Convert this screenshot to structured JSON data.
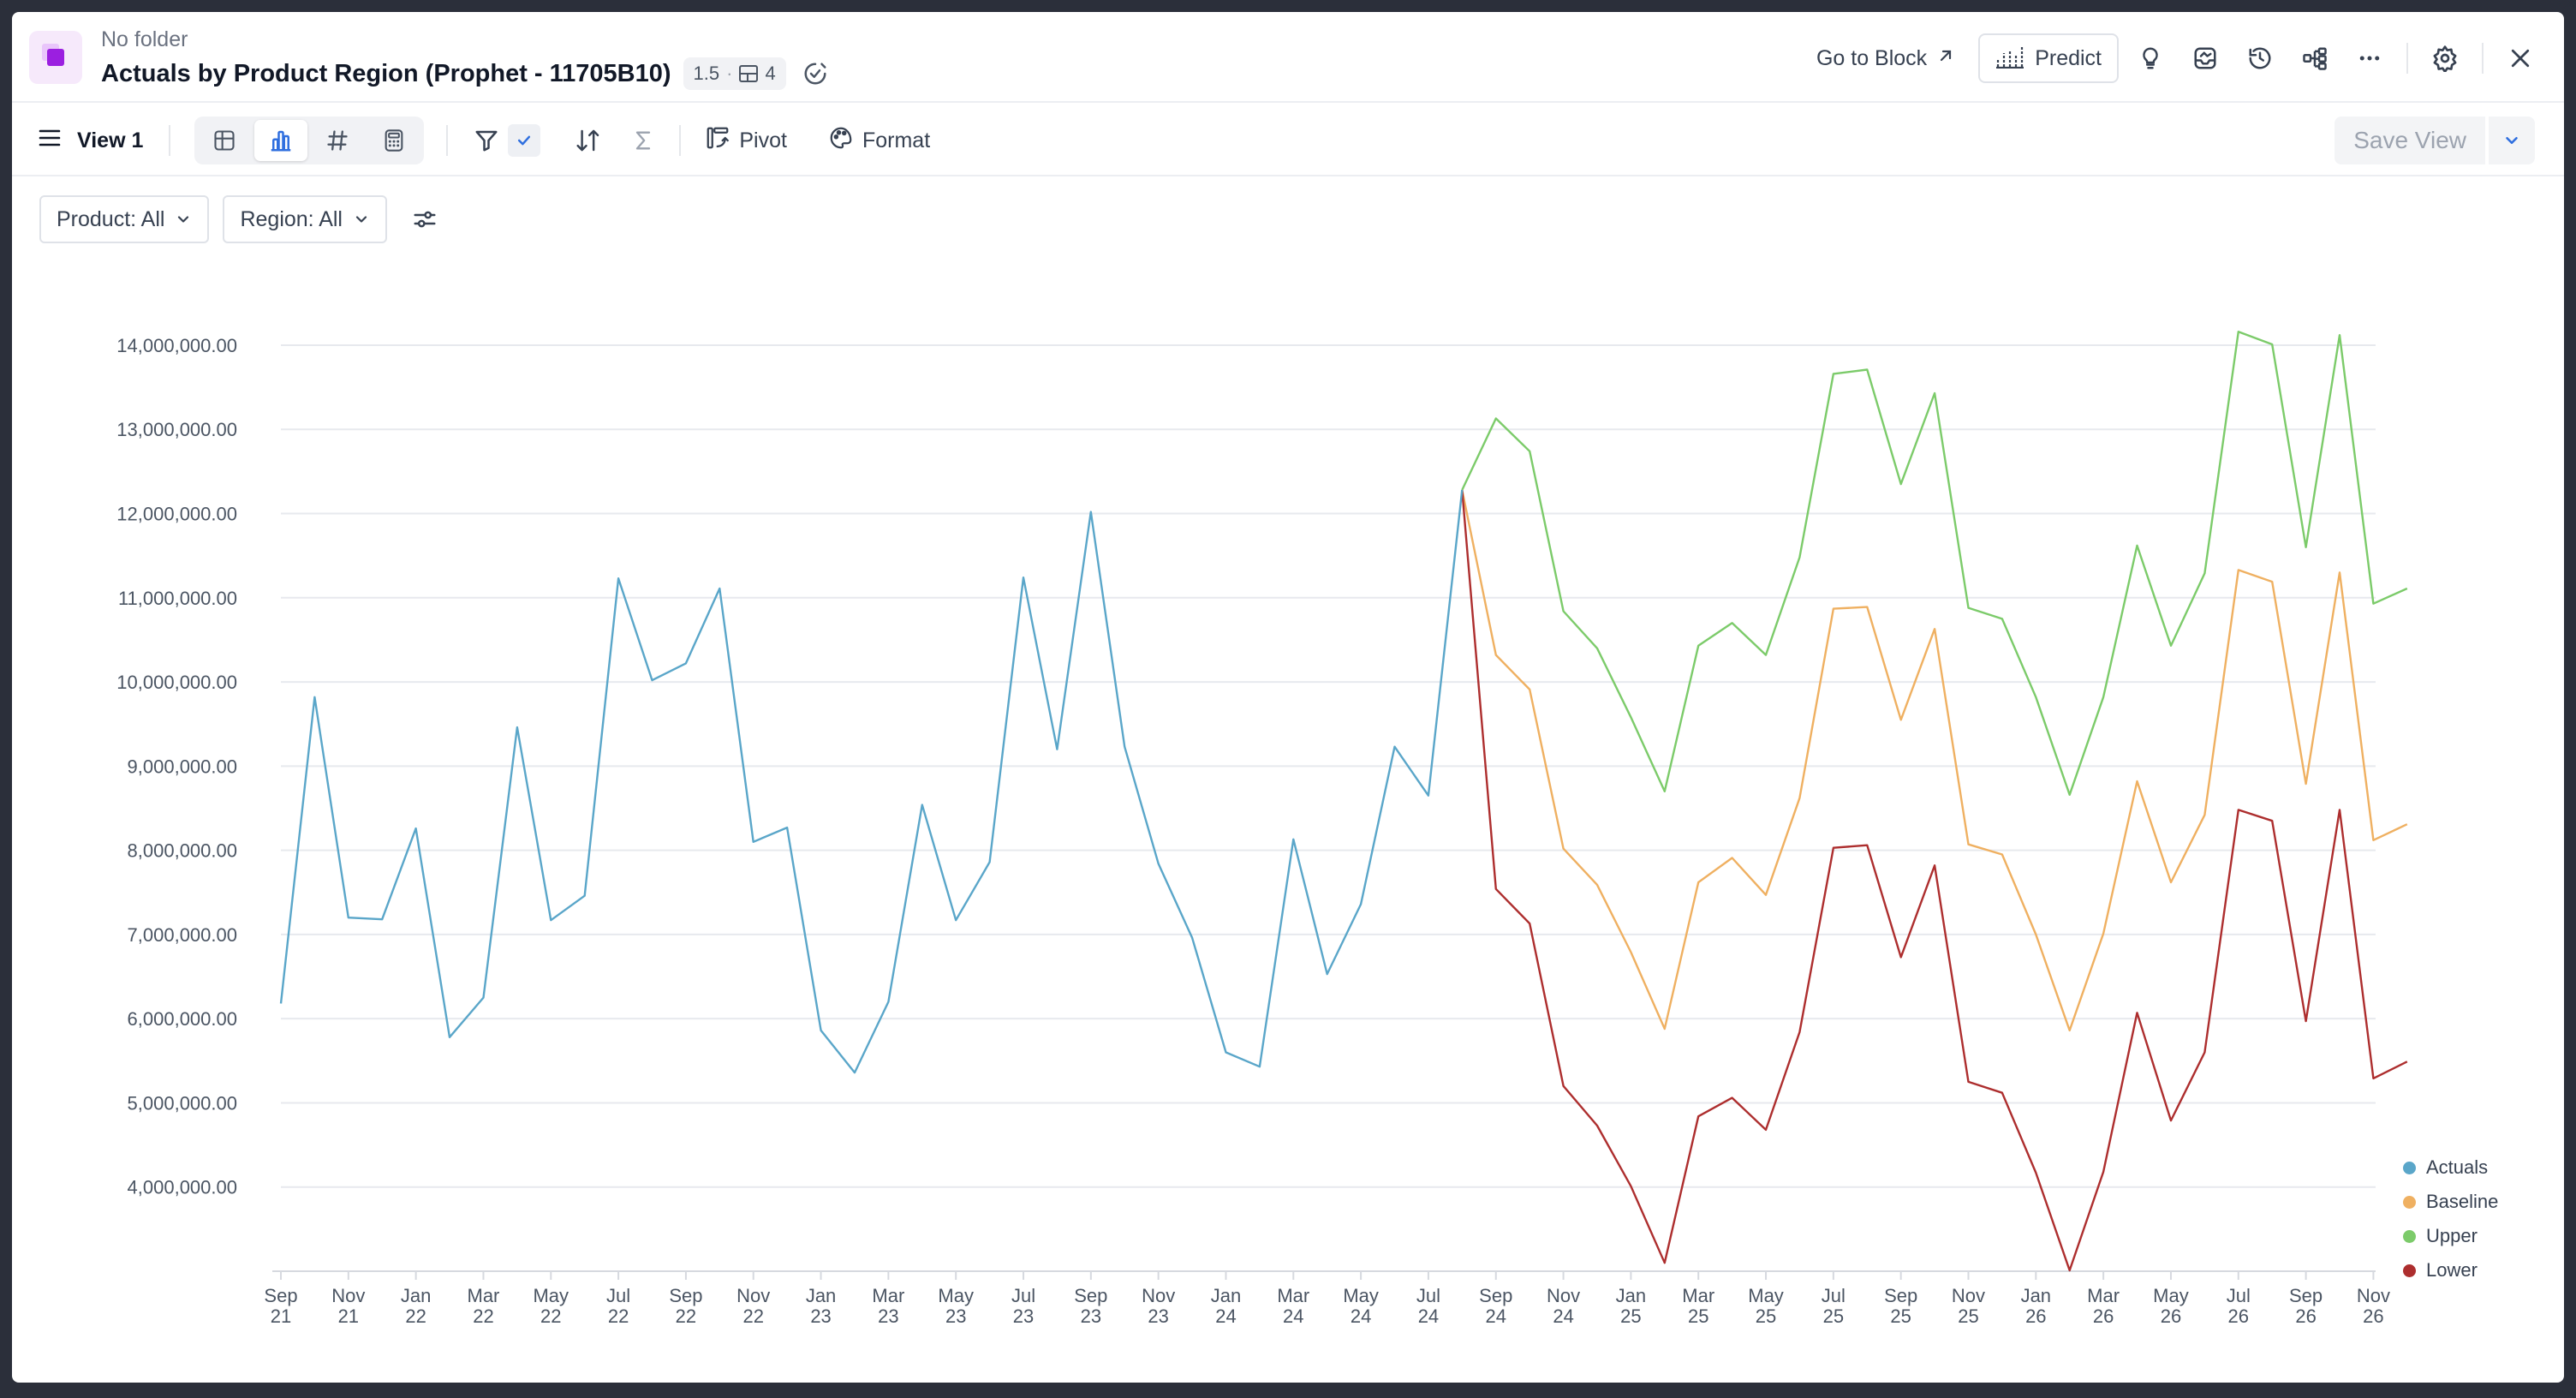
{
  "header": {
    "folder": "No folder",
    "title": "Actuals by Product Region (Prophet - 11705B10)",
    "version": "1.5",
    "dot": "·",
    "block_count": "4",
    "goto_label": "Go to Block",
    "predict_label": "Predict"
  },
  "toolbar": {
    "view_name": "View 1",
    "pivot_label": "Pivot",
    "format_label": "Format",
    "save_view_label": "Save View"
  },
  "filters": {
    "product": "Product: All",
    "region": "Region: All"
  },
  "colors": {
    "actuals": "#5aa6c9",
    "baseline": "#efb061",
    "upper": "#7ccb6a",
    "lower": "#ad2e2e",
    "accent": "#2f6fdf"
  },
  "icons": {
    "menu": "hamburger-icon",
    "table": "table-icon",
    "chart": "bar-chart-icon",
    "number": "hash-icon",
    "calc": "calculator-icon",
    "filter": "filter-icon",
    "sort": "sort-icon",
    "sum": "sigma-icon",
    "pivot": "pivot-icon",
    "format": "palette-icon",
    "lightbulb": "lightbulb-icon",
    "inbox": "inbox-icon",
    "history": "history-icon",
    "tree": "tree-icon",
    "more": "more-icon",
    "settings": "gear-icon",
    "close": "close-icon"
  },
  "chart_data": {
    "type": "line",
    "y_ticks": [
      "14,000,000.00",
      "13,000,000.00",
      "12,000,000.00",
      "11,000,000.00",
      "10,000,000.00",
      "9,000,000.00",
      "8,000,000.00",
      "7,000,000.00",
      "6,000,000.00",
      "5,000,000.00",
      "4,000,000.00"
    ],
    "ylim": [
      3000000,
      14600000
    ],
    "x_ticks": [
      [
        "Sep",
        "21"
      ],
      [
        "Nov",
        "21"
      ],
      [
        "Jan",
        "22"
      ],
      [
        "Mar",
        "22"
      ],
      [
        "May",
        "22"
      ],
      [
        "Jul",
        "22"
      ],
      [
        "Sep",
        "22"
      ],
      [
        "Nov",
        "22"
      ],
      [
        "Jan",
        "23"
      ],
      [
        "Mar",
        "23"
      ],
      [
        "May",
        "23"
      ],
      [
        "Jul",
        "23"
      ],
      [
        "Sep",
        "23"
      ],
      [
        "Nov",
        "23"
      ],
      [
        "Jan",
        "24"
      ],
      [
        "Mar",
        "24"
      ],
      [
        "May",
        "24"
      ],
      [
        "Jul",
        "24"
      ],
      [
        "Sep",
        "24"
      ],
      [
        "Nov",
        "24"
      ],
      [
        "Jan",
        "25"
      ],
      [
        "Mar",
        "25"
      ],
      [
        "May",
        "25"
      ],
      [
        "Jul",
        "25"
      ],
      [
        "Sep",
        "25"
      ],
      [
        "Nov",
        "25"
      ],
      [
        "Jan",
        "26"
      ],
      [
        "Mar",
        "26"
      ],
      [
        "May",
        "26"
      ],
      [
        "Jul",
        "26"
      ],
      [
        "Sep",
        "26"
      ],
      [
        "Nov",
        "26"
      ]
    ],
    "legend": [
      "Actuals",
      "Baseline",
      "Upper",
      "Lower"
    ],
    "legend_position": "bottom-right",
    "grid": true,
    "series": [
      {
        "name": "Actuals",
        "start": "2021-09",
        "values": [
          6180000,
          9820000,
          7200000,
          7180000,
          8260000,
          5780000,
          6250000,
          9460000,
          7170000,
          7460000,
          11230000,
          10020000,
          10220000,
          11110000,
          8100000,
          8270000,
          5860000,
          5360000,
          6200000,
          8540000,
          7170000,
          7860000,
          11240000,
          9200000,
          12020000,
          9230000,
          7840000,
          6960000,
          5600000,
          5430000,
          8130000,
          6530000,
          7360000,
          9230000,
          8650000,
          12280000
        ]
      },
      {
        "name": "Baseline",
        "start": "2024-08",
        "values": [
          12280000,
          10320000,
          9910000,
          8020000,
          7590000,
          6790000,
          5880000,
          7620000,
          7910000,
          7470000,
          8620000,
          10870000,
          10890000,
          9550000,
          10630000,
          8070000,
          7950000,
          7000000,
          5860000,
          7010000,
          8820000,
          7620000,
          8420000,
          11330000,
          11190000,
          8790000,
          11300000,
          8120000,
          8310000
        ]
      },
      {
        "name": "Upper",
        "start": "2024-08",
        "values": [
          12280000,
          13130000,
          12740000,
          10840000,
          10400000,
          9580000,
          8700000,
          10430000,
          10700000,
          10320000,
          11480000,
          13660000,
          13710000,
          12350000,
          13430000,
          10880000,
          10750000,
          9820000,
          8660000,
          9820000,
          11620000,
          10430000,
          11290000,
          14160000,
          14010000,
          11600000,
          14120000,
          10930000,
          11110000
        ]
      },
      {
        "name": "Lower",
        "start": "2024-08",
        "values": [
          12280000,
          7540000,
          7130000,
          5200000,
          4730000,
          4010000,
          3100000,
          4840000,
          5060000,
          4680000,
          5840000,
          8030000,
          8060000,
          6730000,
          7820000,
          5250000,
          5120000,
          4170000,
          3010000,
          4180000,
          6070000,
          4790000,
          5600000,
          8480000,
          8350000,
          5970000,
          8480000,
          5290000,
          5490000
        ]
      }
    ]
  }
}
